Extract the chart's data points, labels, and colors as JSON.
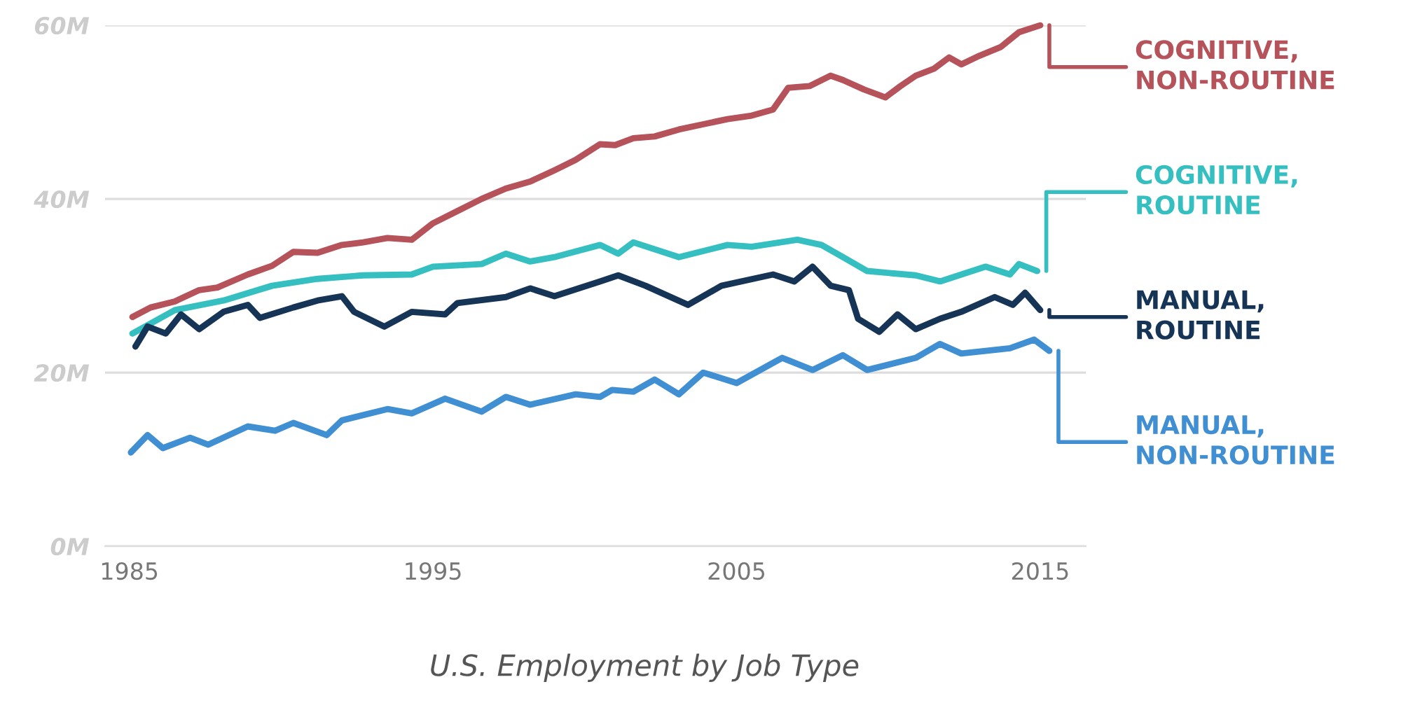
{
  "chart_data": {
    "type": "line",
    "title": "U.S. Employment by Job Type",
    "xlim": [
      1984.2,
      2016.5
    ],
    "xticks": [
      1985,
      1995,
      2005,
      2015
    ],
    "ylim": [
      0,
      60
    ],
    "yticks": [
      {
        "value": 0,
        "label": "0M"
      },
      {
        "value": 20,
        "label": "20M"
      },
      {
        "value": 40,
        "label": "40M"
      },
      {
        "value": 60,
        "label": "60M"
      }
    ],
    "grid": "y",
    "legend": "right",
    "marker": "none",
    "line_style": "solid",
    "series": [
      {
        "name": "COGNITIVE,\nNON-ROUTINE",
        "color": "#b5525a",
        "x": [
          1985.1,
          1985.7,
          1986.5,
          1987.3,
          1987.9,
          1988.9,
          1989.7,
          1990.4,
          1991.2,
          1992.0,
          1992.7,
          1993.5,
          1994.3,
          1995.0,
          1995.8,
          1996.6,
          1997.4,
          1998.2,
          1999.0,
          1999.7,
          2000.5,
          2001.0,
          2001.6,
          2002.3,
          2003.1,
          2003.9,
          2004.7,
          2005.5,
          2006.2,
          2006.7,
          2007.4,
          2008.1,
          2008.5,
          2009.2,
          2009.9,
          2010.4,
          2010.9,
          2011.5,
          2012.0,
          2012.4,
          2013.0,
          2013.7,
          2014.3,
          2015.0
        ],
        "values": [
          26.4,
          27.5,
          28.2,
          29.5,
          29.8,
          31.3,
          32.3,
          33.9,
          33.8,
          34.7,
          35.0,
          35.5,
          35.3,
          37.2,
          38.6,
          40.0,
          41.2,
          42.0,
          43.3,
          44.5,
          46.3,
          46.2,
          47.0,
          47.2,
          48.0,
          48.6,
          49.2,
          49.6,
          50.3,
          52.8,
          53.0,
          54.2,
          53.7,
          52.6,
          51.7,
          53.0,
          54.2,
          55.0,
          56.3,
          55.5,
          56.5,
          57.5,
          59.2,
          60.0
        ]
      },
      {
        "name": "COGNITIVE,\nROUTINE",
        "color": "#35bfc0",
        "x": [
          1985.1,
          1986.5,
          1988.1,
          1989.7,
          1991.2,
          1992.7,
          1994.3,
          1995.0,
          1996.6,
          1997.4,
          1998.2,
          1999.0,
          2000.5,
          2001.1,
          2001.6,
          2003.1,
          2004.7,
          2005.5,
          2007.0,
          2007.8,
          2008.5,
          2009.3,
          2010.9,
          2011.7,
          2013.2,
          2014.0,
          2014.3,
          2014.9
        ],
        "values": [
          24.5,
          27.2,
          28.3,
          30.0,
          30.8,
          31.2,
          31.3,
          32.2,
          32.5,
          33.7,
          32.8,
          33.3,
          34.7,
          33.7,
          35.0,
          33.3,
          34.7,
          34.5,
          35.3,
          34.7,
          33.3,
          31.7,
          31.2,
          30.5,
          32.2,
          31.3,
          32.5,
          31.7
        ]
      },
      {
        "name": "MANUAL,\nROUTINE",
        "color": "#163456",
        "x": [
          1985.2,
          1985.6,
          1986.2,
          1986.7,
          1987.3,
          1988.1,
          1988.9,
          1989.3,
          1990.4,
          1991.2,
          1992.0,
          1992.4,
          1993.4,
          1994.3,
          1995.4,
          1995.8,
          1997.4,
          1998.2,
          1999.0,
          2000.5,
          2001.1,
          2002.0,
          2003.4,
          2004.5,
          2006.2,
          2006.9,
          2007.5,
          2008.1,
          2008.7,
          2009.0,
          2009.7,
          2010.3,
          2010.9,
          2011.7,
          2012.4,
          2013.5,
          2014.1,
          2014.5,
          2015.0
        ],
        "values": [
          23.0,
          25.3,
          24.5,
          26.7,
          25.0,
          27.0,
          27.8,
          26.3,
          27.5,
          28.3,
          28.8,
          27.0,
          25.3,
          27.0,
          26.7,
          28.0,
          28.7,
          29.7,
          28.8,
          30.5,
          31.2,
          30.0,
          27.8,
          30.0,
          31.3,
          30.5,
          32.2,
          30.0,
          29.5,
          26.2,
          24.7,
          26.7,
          25.0,
          26.2,
          27.0,
          28.7,
          27.8,
          29.2,
          27.2
        ]
      },
      {
        "name": "MANUAL,\nNON-ROUTINE",
        "color": "#3f8fd2",
        "x": [
          1985.05,
          1985.6,
          1986.1,
          1987.0,
          1987.6,
          1988.9,
          1989.8,
          1990.4,
          1991.5,
          1992.0,
          1993.5,
          1994.3,
          1995.4,
          1996.6,
          1997.4,
          1998.2,
          1999.7,
          2000.5,
          2000.9,
          2001.6,
          2002.3,
          2003.1,
          2003.9,
          2005.0,
          2006.5,
          2007.5,
          2008.5,
          2009.3,
          2010.9,
          2011.7,
          2012.4,
          2014.0,
          2014.8,
          2015.3
        ],
        "values": [
          10.8,
          12.8,
          11.3,
          12.5,
          11.7,
          13.8,
          13.3,
          14.2,
          12.8,
          14.5,
          15.8,
          15.3,
          17.0,
          15.5,
          17.2,
          16.3,
          17.5,
          17.2,
          18.0,
          17.8,
          19.2,
          17.5,
          20.0,
          18.8,
          21.7,
          20.3,
          22.0,
          20.3,
          21.7,
          23.3,
          22.2,
          22.8,
          23.8,
          22.5
        ]
      }
    ]
  }
}
